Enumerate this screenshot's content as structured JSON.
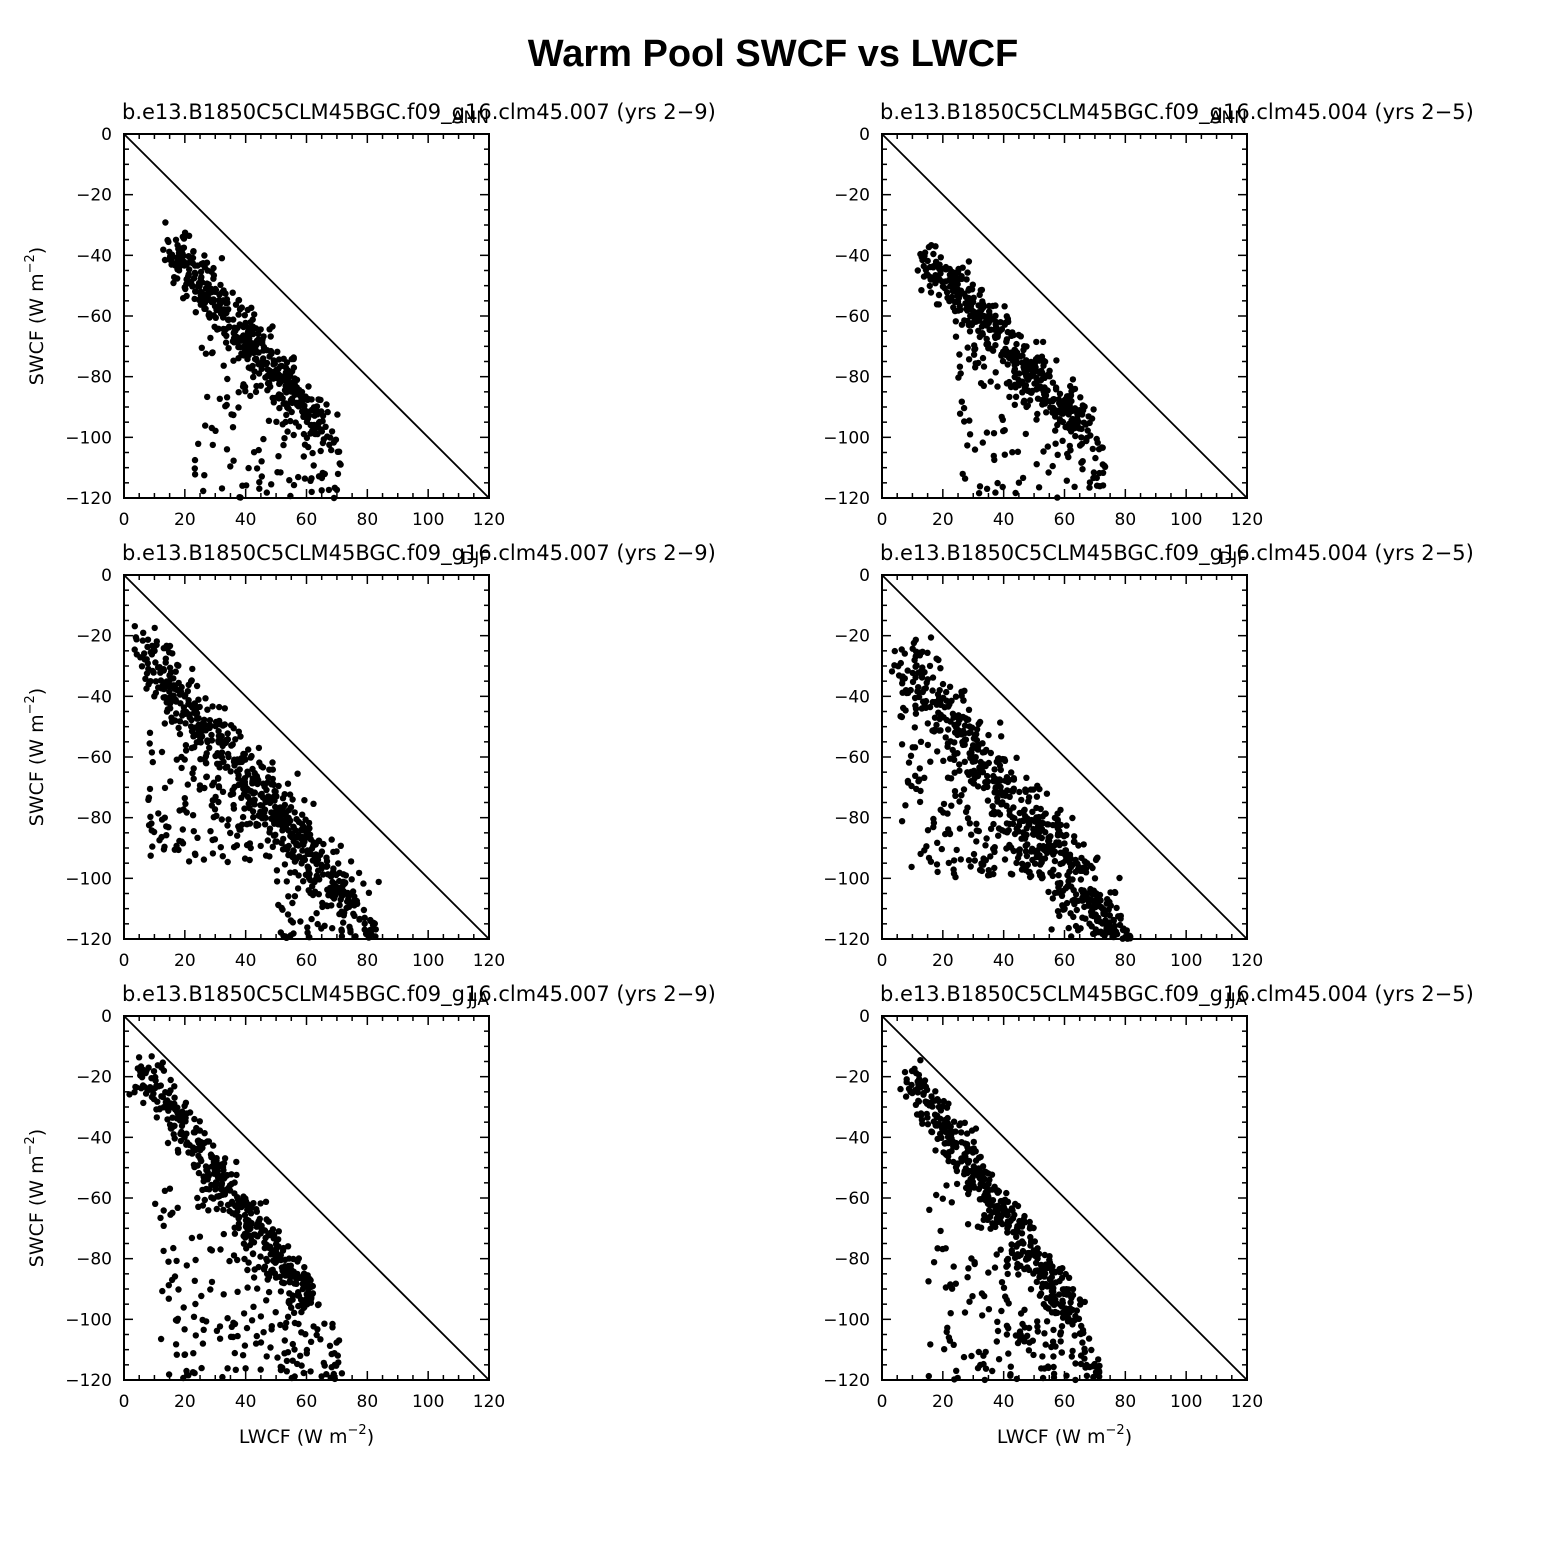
{
  "figure": {
    "title": "Warm Pool SWCF vs LWCF"
  },
  "axis_text": {
    "ylabel_main": "SWCF  (W m",
    "ylabel_close": ")",
    "xlabel_main": "LWCF  (W m",
    "xlabel_close": ")",
    "unit_exponent": "−2"
  },
  "chart_data": [
    {
      "type": "scatter",
      "title": "b.e13.B1850C5CLM45BGC.f09_g16.clm45.007 (yrs 2−9)",
      "season": "ANN",
      "xlim": [
        0,
        120
      ],
      "ylim": [
        -120,
        0
      ],
      "xticks": [
        0,
        20,
        40,
        60,
        80,
        100,
        120
      ],
      "yticks": [
        0,
        -20,
        -40,
        -60,
        -80,
        -100,
        -120
      ],
      "reference_line": "y = -x",
      "ylabel": "SWCF (W m−2)",
      "xlabel": "",
      "cluster": {
        "start": [
          15,
          -34
        ],
        "end": [
          66,
          -96
        ],
        "spread": 4,
        "n": 420
      },
      "scatter_regions": [
        {
          "x": [
            22,
            72
          ],
          "y": [
            -60,
            -120
          ],
          "n": 120
        }
      ]
    },
    {
      "type": "scatter",
      "title": "b.e13.B1850C5CLM45BGC.f09_g16.clm45.004 (yrs 2−5)",
      "season": "ANN",
      "xlim": [
        0,
        120
      ],
      "ylim": [
        -120,
        0
      ],
      "xticks": [
        0,
        20,
        40,
        60,
        80,
        100,
        120
      ],
      "yticks": [
        0,
        -20,
        -40,
        -60,
        -80,
        -100,
        -120
      ],
      "reference_line": "y = -x",
      "ylabel": "",
      "xlabel": "",
      "cluster": {
        "start": [
          15,
          -39
        ],
        "end": [
          66,
          -94
        ],
        "spread": 4,
        "n": 420
      },
      "scatter_regions": [
        {
          "x": [
            25,
            75
          ],
          "y": [
            -65,
            -120
          ],
          "n": 120
        }
      ]
    },
    {
      "type": "scatter",
      "title": "b.e13.B1850C5CLM45BGC.f09_g16.clm45.007 (yrs 2−9)",
      "season": "DJF",
      "xlim": [
        0,
        120
      ],
      "ylim": [
        -120,
        0
      ],
      "xticks": [
        0,
        20,
        40,
        60,
        80,
        100,
        120
      ],
      "yticks": [
        0,
        -20,
        -40,
        -60,
        -80,
        -100,
        -120
      ],
      "reference_line": "y = -x",
      "ylabel": "SWCF (W m−2)",
      "xlabel": "",
      "cluster": {
        "start": [
          5,
          -20
        ],
        "end": [
          75,
          -105
        ],
        "spread": 5,
        "n": 480
      },
      "scatter_regions": [
        {
          "x": [
            8,
            60
          ],
          "y": [
            -35,
            -95
          ],
          "n": 180
        },
        {
          "x": [
            50,
            84
          ],
          "y": [
            -95,
            -120
          ],
          "n": 90
        }
      ]
    },
    {
      "type": "scatter",
      "title": "b.e13.B1850C5CLM45BGC.f09_g16.clm45.004 (yrs 2−5)",
      "season": "DJF",
      "xlim": [
        0,
        120
      ],
      "ylim": [
        -120,
        0
      ],
      "xticks": [
        0,
        20,
        40,
        60,
        80,
        100,
        120
      ],
      "yticks": [
        0,
        -20,
        -40,
        -60,
        -80,
        -100,
        -120
      ],
      "reference_line": "y = -x",
      "ylabel": "",
      "xlabel": "",
      "cluster": {
        "start": [
          7,
          -24
        ],
        "end": [
          76,
          -112
        ],
        "spread": 5,
        "n": 460
      },
      "scatter_regions": [
        {
          "x": [
            6,
            55
          ],
          "y": [
            -30,
            -100
          ],
          "n": 200
        },
        {
          "x": [
            55,
            82
          ],
          "y": [
            -95,
            -120
          ],
          "n": 80
        }
      ]
    },
    {
      "type": "scatter",
      "title": "b.e13.B1850C5CLM45BGC.f09_g16.clm45.007 (yrs 2−9)",
      "season": "JJA",
      "xlim": [
        0,
        120
      ],
      "ylim": [
        -120,
        0
      ],
      "xticks": [
        0,
        20,
        40,
        60,
        80,
        100,
        120
      ],
      "yticks": [
        0,
        -20,
        -40,
        -60,
        -80,
        -100,
        -120
      ],
      "reference_line": "y = -x",
      "ylabel": "SWCF (W m−2)",
      "xlabel": "LWCF (W m−2)",
      "cluster": {
        "start": [
          6,
          -17
        ],
        "end": [
          62,
          -92
        ],
        "spread": 3.5,
        "n": 400
      },
      "scatter_regions": [
        {
          "x": [
            10,
            72
          ],
          "y": [
            -55,
            -120
          ],
          "n": 200
        }
      ]
    },
    {
      "type": "scatter",
      "title": "b.e13.B1850C5CLM45BGC.f09_g16.clm45.004 (yrs 2−5)",
      "season": "JJA",
      "xlim": [
        0,
        120
      ],
      "ylim": [
        -120,
        0
      ],
      "xticks": [
        0,
        20,
        40,
        60,
        80,
        100,
        120
      ],
      "yticks": [
        0,
        -20,
        -40,
        -60,
        -80,
        -100,
        -120
      ],
      "reference_line": "y = -x",
      "ylabel": "",
      "xlabel": "LWCF (W m−2)",
      "cluster": {
        "start": [
          8,
          -17
        ],
        "end": [
          64,
          -98
        ],
        "spread": 3.5,
        "n": 400
      },
      "scatter_regions": [
        {
          "x": [
            15,
            72
          ],
          "y": [
            -55,
            -120
          ],
          "n": 200
        }
      ]
    }
  ]
}
